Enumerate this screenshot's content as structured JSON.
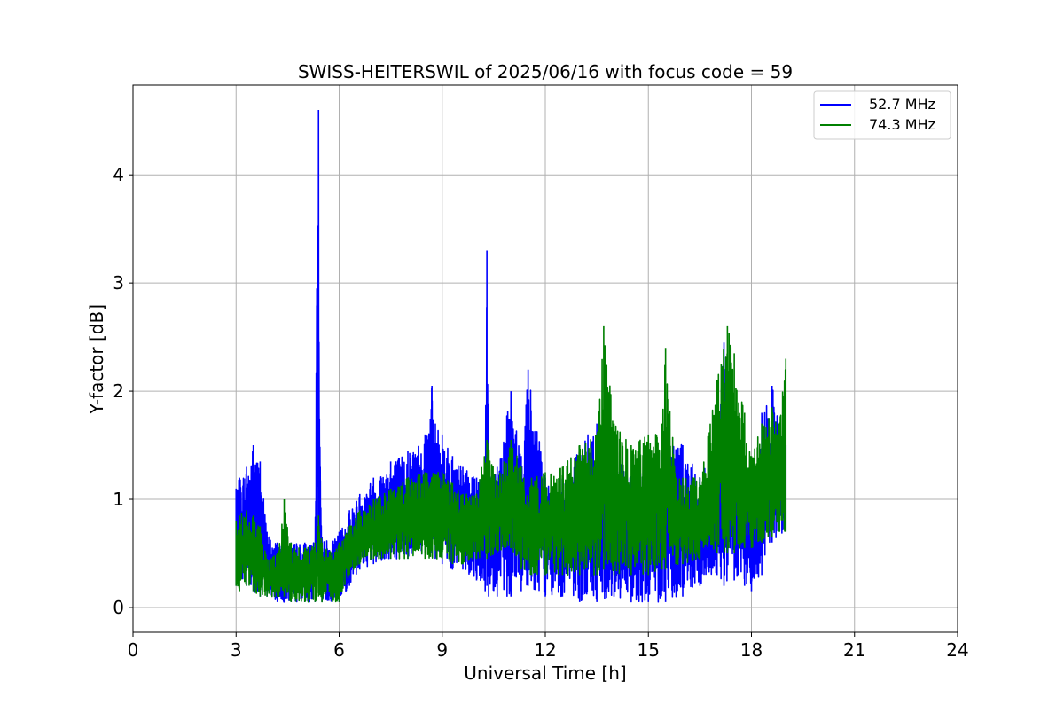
{
  "chart_data": {
    "type": "line",
    "title": "SWISS-HEITERSWIL of 2025/06/16 with focus code = 59",
    "xlabel": "Universal Time [h]",
    "ylabel": "Y-factor [dB]",
    "xlim": [
      0,
      24
    ],
    "ylim": [
      -0.23,
      4.83
    ],
    "x_ticks": [
      0,
      3,
      6,
      9,
      12,
      15,
      18,
      21,
      24
    ],
    "x_tick_labels": [
      "0",
      "3",
      "6",
      "9",
      "12",
      "15",
      "18",
      "21",
      "24"
    ],
    "y_ticks": [
      0,
      1,
      2,
      3,
      4
    ],
    "y_tick_labels": [
      "0",
      "1",
      "2",
      "3",
      "4"
    ],
    "grid": true,
    "legend_position": "upper right",
    "colors": {
      "series_1": "#0000ff",
      "series_2": "#008000"
    },
    "series": [
      {
        "name": "52.7 MHz",
        "color": "#0000ff",
        "x": [
          3.0,
          3.1,
          3.3,
          3.5,
          3.7,
          3.9,
          4.2,
          4.6,
          5.0,
          5.3,
          5.35,
          5.4,
          5.45,
          5.5,
          5.8,
          6.0,
          6.3,
          6.6,
          7.0,
          7.5,
          8.0,
          8.5,
          8.7,
          8.8,
          9.0,
          9.3,
          9.6,
          10.0,
          10.25,
          10.3,
          10.35,
          10.6,
          11.0,
          11.3,
          11.5,
          12.0,
          12.5,
          13.0,
          13.5,
          14.0,
          14.5,
          15.0,
          15.5,
          16.0,
          16.5,
          17.0,
          17.2,
          17.5,
          17.8,
          18.0,
          18.3,
          18.6,
          19.0
        ],
        "high": [
          1.1,
          1.2,
          1.3,
          1.5,
          1.35,
          0.7,
          0.6,
          0.6,
          0.6,
          0.6,
          2.95,
          4.6,
          1.3,
          0.65,
          0.6,
          0.7,
          0.9,
          1.05,
          1.2,
          1.35,
          1.45,
          1.6,
          2.05,
          1.7,
          1.6,
          1.4,
          1.3,
          1.2,
          1.15,
          3.3,
          1.5,
          1.3,
          2.0,
          1.4,
          2.2,
          1.2,
          1.2,
          1.5,
          1.7,
          1.4,
          1.2,
          1.4,
          1.6,
          1.5,
          1.2,
          1.5,
          2.45,
          1.8,
          1.3,
          1.2,
          1.8,
          2.05,
          1.5
        ],
        "low": [
          0.2,
          0.3,
          0.2,
          0.15,
          0.1,
          0.1,
          0.05,
          0.05,
          0.05,
          0.05,
          0.3,
          0.3,
          0.3,
          0.05,
          0.05,
          0.05,
          0.2,
          0.35,
          0.4,
          0.45,
          0.45,
          0.5,
          0.5,
          0.45,
          0.4,
          0.35,
          0.35,
          0.25,
          0.15,
          0.2,
          0.1,
          0.1,
          0.1,
          0.15,
          0.2,
          0.1,
          0.1,
          0.05,
          0.05,
          0.1,
          0.05,
          0.05,
          0.05,
          0.1,
          0.2,
          0.3,
          0.2,
          0.25,
          0.2,
          0.15,
          0.3,
          0.6,
          0.7
        ]
      },
      {
        "name": "74.3 MHz",
        "color": "#008000",
        "x": [
          3.0,
          3.1,
          3.3,
          3.5,
          3.7,
          3.9,
          4.2,
          4.4,
          4.6,
          5.0,
          5.3,
          5.4,
          5.5,
          5.8,
          6.0,
          6.3,
          6.6,
          7.0,
          7.5,
          8.0,
          8.5,
          9.0,
          9.3,
          9.6,
          10.0,
          10.3,
          10.6,
          10.8,
          11.0,
          11.3,
          11.6,
          12.0,
          12.5,
          13.0,
          13.5,
          13.7,
          14.0,
          14.5,
          15.0,
          15.4,
          15.5,
          15.8,
          16.0,
          16.5,
          17.0,
          17.3,
          17.5,
          17.8,
          18.0,
          18.3,
          18.6,
          18.8,
          19.0
        ],
        "high": [
          0.8,
          0.85,
          0.9,
          0.85,
          0.75,
          0.45,
          0.5,
          1.0,
          0.6,
          0.55,
          0.6,
          0.85,
          0.6,
          0.5,
          0.6,
          0.75,
          0.9,
          1.0,
          1.1,
          1.2,
          1.25,
          1.25,
          1.15,
          1.05,
          1.05,
          1.55,
          1.2,
          1.35,
          1.55,
          1.3,
          1.2,
          1.25,
          1.3,
          1.5,
          1.6,
          2.6,
          1.7,
          1.5,
          1.6,
          1.7,
          2.4,
          1.2,
          1.2,
          1.2,
          2.1,
          2.6,
          2.35,
          1.8,
          1.4,
          1.7,
          1.85,
          1.7,
          2.3
        ],
        "low": [
          0.2,
          0.15,
          0.2,
          0.15,
          0.1,
          0.1,
          0.1,
          0.1,
          0.05,
          0.05,
          0.05,
          0.1,
          0.05,
          0.05,
          0.05,
          0.3,
          0.4,
          0.45,
          0.45,
          0.45,
          0.45,
          0.45,
          0.4,
          0.4,
          0.45,
          0.45,
          0.5,
          0.55,
          0.55,
          0.35,
          0.3,
          0.3,
          0.3,
          0.3,
          0.3,
          0.35,
          0.3,
          0.3,
          0.3,
          0.35,
          0.35,
          0.4,
          0.4,
          0.45,
          0.5,
          0.5,
          0.5,
          0.55,
          0.55,
          0.6,
          0.65,
          0.7,
          0.7
        ]
      }
    ]
  }
}
